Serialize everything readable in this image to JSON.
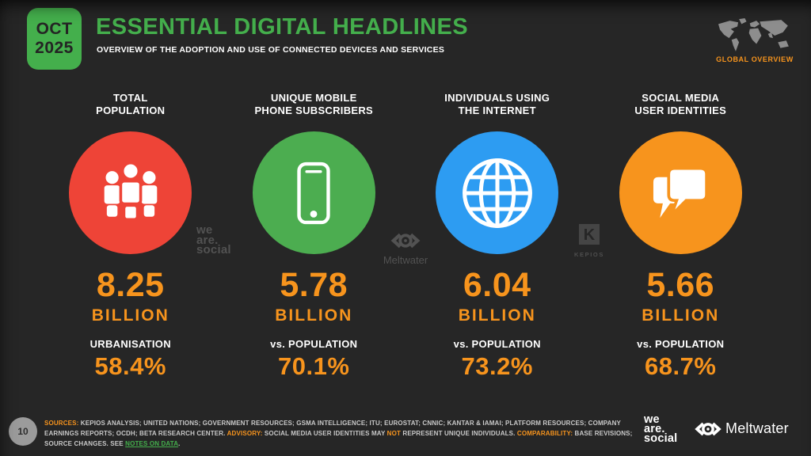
{
  "colors": {
    "green": "#44af4c",
    "red": "#ee4437",
    "blue": "#2d9cf2",
    "orange": "#f7941d",
    "background": "#262626"
  },
  "header": {
    "badge_month": "OCT",
    "badge_year": "2025",
    "title": "ESSENTIAL DIGITAL HEADLINES",
    "subtitle": "OVERVIEW OF THE ADOPTION AND USE OF CONNECTED DEVICES AND SERVICES",
    "region_label": "GLOBAL OVERVIEW"
  },
  "stats": [
    {
      "title_line1": "TOTAL",
      "title_line2": "POPULATION",
      "icon": "people-icon",
      "circle_color": "#ee4437",
      "value": "8.25",
      "unit": "BILLION",
      "metric_label": "URBANISATION",
      "metric_value": "58.4%"
    },
    {
      "title_line1": "UNIQUE MOBILE",
      "title_line2": "PHONE SUBSCRIBERS",
      "icon": "mobile-phone-icon",
      "circle_color": "#4cad50",
      "value": "5.78",
      "unit": "BILLION",
      "metric_label": "vs. POPULATION",
      "metric_value": "70.1%"
    },
    {
      "title_line1": "INDIVIDUALS USING",
      "title_line2": "THE INTERNET",
      "icon": "globe-icon",
      "circle_color": "#2d9cf2",
      "value": "6.04",
      "unit": "BILLION",
      "metric_label": "vs. POPULATION",
      "metric_value": "73.2%"
    },
    {
      "title_line1": "SOCIAL MEDIA",
      "title_line2": "USER IDENTITIES",
      "icon": "chat-bubbles-icon",
      "circle_color": "#f7941d",
      "value": "5.66",
      "unit": "BILLION",
      "metric_label": "vs. POPULATION",
      "metric_value": "68.7%"
    }
  ],
  "watermarks": {
    "we_are_social": {
      "line1": "we",
      "line2": "are.",
      "line3": "social"
    },
    "meltwater": "Meltwater",
    "kepios": "KEPIOS"
  },
  "footer": {
    "page_number": "10",
    "sources_segments": [
      {
        "text": "SOURCES:",
        "style": "orange-bold"
      },
      {
        "text": " KEPIOS ANALYSIS; UNITED NATIONS; GOVERNMENT RESOURCES; GSMA INTELLIGENCE; ITU; EUROSTAT; CNNIC; KANTAR & IAMAI; PLATFORM RESOURCES; COMPANY EARNINGS REPORTS; OCDH; BETA RESEARCH CENTER. ",
        "style": "plain"
      },
      {
        "text": "ADVISORY:",
        "style": "orange-bold"
      },
      {
        "text": " SOCIAL MEDIA USER IDENTITIES MAY ",
        "style": "plain"
      },
      {
        "text": "NOT",
        "style": "orange"
      },
      {
        "text": " REPRESENT UNIQUE INDIVIDUALS. ",
        "style": "plain"
      },
      {
        "text": "COMPARABILITY:",
        "style": "orange-bold"
      },
      {
        "text": " BASE REVISIONS; SOURCE CHANGES. SEE ",
        "style": "plain"
      },
      {
        "text": "NOTES ON DATA",
        "style": "green-link"
      },
      {
        "text": ".",
        "style": "plain"
      }
    ],
    "we_are_social_logo": {
      "line1": "we",
      "line2": "are.",
      "line3": "social"
    },
    "meltwater_logo": "Meltwater"
  },
  "chart_data": {
    "type": "table",
    "title": "ESSENTIAL DIGITAL HEADLINES",
    "subtitle": "OVERVIEW OF THE ADOPTION AND USE OF CONNECTED DEVICES AND SERVICES",
    "date": "OCT 2025",
    "scope": "GLOBAL OVERVIEW",
    "categories": [
      "TOTAL POPULATION",
      "UNIQUE MOBILE PHONE SUBSCRIBERS",
      "INDIVIDUALS USING THE INTERNET",
      "SOCIAL MEDIA USER IDENTITIES"
    ],
    "values_billions": [
      8.25,
      5.78,
      6.04,
      5.66
    ],
    "secondary_metric_labels": [
      "URBANISATION",
      "vs. POPULATION",
      "vs. POPULATION",
      "vs. POPULATION"
    ],
    "secondary_metric_values_percent": [
      58.4,
      70.1,
      73.2,
      68.7
    ]
  }
}
